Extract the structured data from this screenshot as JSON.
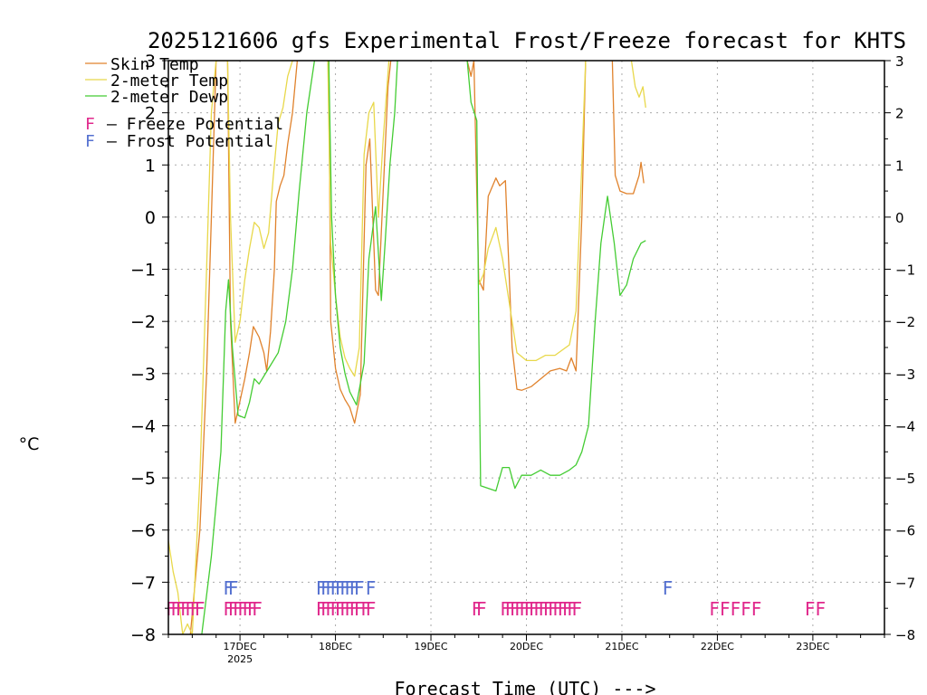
{
  "chart_data": {
    "type": "line",
    "title": "2025121606 gfs Experimental Frost/Freeze forecast for KHTS",
    "xlabel": "Forecast Time (UTC) --->",
    "ylabel": "°C",
    "ylim": [
      -8,
      3
    ],
    "y_ticks": [
      -8,
      -7,
      -6,
      -5,
      -4,
      -3,
      -2,
      -1,
      0,
      1,
      2,
      3
    ],
    "xlim": [
      -0.75,
      6.75
    ],
    "x_ticks": [
      {
        "x": 0,
        "label": "17DEC",
        "sublabel": "2025"
      },
      {
        "x": 1,
        "label": "18DEC",
        "sublabel": ""
      },
      {
        "x": 2,
        "label": "19DEC",
        "sublabel": ""
      },
      {
        "x": 3,
        "label": "20DEC",
        "sublabel": ""
      },
      {
        "x": 4,
        "label": "21DEC",
        "sublabel": ""
      },
      {
        "x": 5,
        "label": "22DEC",
        "sublabel": ""
      },
      {
        "x": 6,
        "label": "23DEC",
        "sublabel": ""
      }
    ],
    "grid": true,
    "legend_position": "top-left",
    "series": [
      {
        "name": "Skin Temp",
        "color": "#e0822c",
        "points": [
          [
            -0.52,
            -8
          ],
          [
            -0.42,
            -6
          ],
          [
            -0.35,
            -3
          ],
          [
            -0.3,
            0
          ],
          [
            -0.25,
            3
          ],
          [
            -0.13,
            3
          ],
          [
            -0.1,
            -2
          ],
          [
            -0.05,
            -3.95
          ],
          [
            0.05,
            -3.1
          ],
          [
            0.1,
            -2.6
          ],
          [
            0.14,
            -2.1
          ],
          [
            0.2,
            -2.3
          ],
          [
            0.25,
            -2.6
          ],
          [
            0.28,
            -2.95
          ],
          [
            0.32,
            -2.2
          ],
          [
            0.36,
            -1
          ],
          [
            0.38,
            0.3
          ],
          [
            0.42,
            0.6
          ],
          [
            0.46,
            0.8
          ],
          [
            0.5,
            1.4
          ],
          [
            0.55,
            2
          ],
          [
            0.6,
            3
          ]
        ],
        "gaps": [
          [
            [
              0.93,
              3
            ],
            [
              0.95,
              -2
            ],
            [
              1,
              -2.9
            ],
            [
              1.05,
              -3.3
            ],
            [
              1.1,
              -3.5
            ],
            [
              1.15,
              -3.65
            ],
            [
              1.2,
              -3.95
            ],
            [
              1.26,
              -3.4
            ],
            [
              1.32,
              1
            ],
            [
              1.36,
              1.5
            ],
            [
              1.42,
              -1.4
            ],
            [
              1.45,
              -1.5
            ],
            [
              1.5,
              0.5
            ],
            [
              1.55,
              2.5
            ],
            [
              1.58,
              3
            ]
          ],
          [
            [
              2.38,
              3
            ],
            [
              2.42,
              2.7
            ],
            [
              2.45,
              3
            ],
            [
              2.5,
              -1.2
            ],
            [
              2.55,
              -1.4
            ],
            [
              2.6,
              0.4
            ],
            [
              2.68,
              0.75
            ],
            [
              2.72,
              0.6
            ],
            [
              2.78,
              0.7
            ],
            [
              2.85,
              -2.5
            ],
            [
              2.9,
              -3.3
            ],
            [
              2.95,
              -3.32
            ],
            [
              3.05,
              -3.25
            ],
            [
              3.15,
              -3.1
            ],
            [
              3.25,
              -2.95
            ],
            [
              3.35,
              -2.9
            ],
            [
              3.42,
              -2.95
            ],
            [
              3.47,
              -2.7
            ],
            [
              3.52,
              -2.95
            ],
            [
              3.58,
              0
            ],
            [
              3.62,
              3
            ]
          ],
          [
            [
              3.9,
              3
            ],
            [
              3.93,
              0.8
            ],
            [
              3.98,
              0.5
            ],
            [
              4.05,
              0.45
            ],
            [
              4.12,
              0.45
            ],
            [
              4.18,
              0.8
            ],
            [
              4.2,
              1.05
            ],
            [
              4.23,
              0.65
            ]
          ]
        ]
      },
      {
        "name": "2-meter Temp",
        "color": "#e8d84a",
        "points": [
          [
            -0.75,
            -6.2
          ],
          [
            -0.7,
            -6.8
          ],
          [
            -0.65,
            -7.2
          ],
          [
            -0.6,
            -8
          ],
          [
            -0.55,
            -7.8
          ],
          [
            -0.5,
            -8
          ],
          [
            -0.42,
            -5
          ],
          [
            -0.35,
            -1
          ],
          [
            -0.3,
            2
          ],
          [
            -0.25,
            3
          ],
          [
            -0.13,
            3
          ],
          [
            -0.1,
            0
          ],
          [
            -0.05,
            -2.4
          ],
          [
            0,
            -2
          ],
          [
            0.05,
            -1.2
          ],
          [
            0.1,
            -0.6
          ],
          [
            0.15,
            -0.1
          ],
          [
            0.2,
            -0.2
          ],
          [
            0.25,
            -0.6
          ],
          [
            0.3,
            -0.3
          ],
          [
            0.35,
            0.8
          ],
          [
            0.4,
            1.8
          ],
          [
            0.45,
            2.1
          ],
          [
            0.5,
            2.7
          ],
          [
            0.55,
            3
          ]
        ],
        "gaps": [
          [
            [
              0.92,
              3
            ],
            [
              0.95,
              -0.5
            ],
            [
              1,
              -1.5
            ],
            [
              1.05,
              -2.3
            ],
            [
              1.1,
              -2.7
            ],
            [
              1.15,
              -2.9
            ],
            [
              1.2,
              -3.05
            ],
            [
              1.25,
              -2.5
            ],
            [
              1.3,
              1.2
            ],
            [
              1.35,
              2
            ],
            [
              1.4,
              2.2
            ],
            [
              1.45,
              0
            ],
            [
              1.5,
              1.5
            ],
            [
              1.56,
              3
            ]
          ],
          [
            [
              2.5,
              -1.3
            ],
            [
              2.55,
              -1.1
            ],
            [
              2.6,
              -0.6
            ],
            [
              2.68,
              -0.2
            ],
            [
              2.75,
              -0.8
            ],
            [
              2.85,
              -2
            ],
            [
              2.9,
              -2.6
            ],
            [
              3,
              -2.75
            ],
            [
              3.1,
              -2.75
            ],
            [
              3.2,
              -2.65
            ],
            [
              3.3,
              -2.65
            ],
            [
              3.45,
              -2.45
            ],
            [
              3.52,
              -1.8
            ],
            [
              3.58,
              1
            ],
            [
              3.62,
              3
            ]
          ],
          [
            [
              4.1,
              3
            ],
            [
              4.14,
              2.5
            ],
            [
              4.18,
              2.3
            ],
            [
              4.22,
              2.5
            ],
            [
              4.25,
              2.1
            ]
          ]
        ]
      },
      {
        "name": "2-meter Dewp",
        "color": "#44cc33",
        "points": [
          [
            -0.4,
            -8
          ],
          [
            -0.3,
            -6.5
          ],
          [
            -0.2,
            -4.5
          ],
          [
            -0.15,
            -1.8
          ],
          [
            -0.12,
            -1.2
          ],
          [
            -0.08,
            -2.5
          ],
          [
            -0.02,
            -3.8
          ],
          [
            0.05,
            -3.85
          ],
          [
            0.1,
            -3.55
          ],
          [
            0.15,
            -3.1
          ],
          [
            0.2,
            -3.2
          ],
          [
            0.3,
            -2.9
          ],
          [
            0.4,
            -2.6
          ],
          [
            0.48,
            -2
          ],
          [
            0.55,
            -1
          ],
          [
            0.62,
            0.5
          ],
          [
            0.7,
            2
          ],
          [
            0.78,
            3
          ]
        ],
        "gaps": [
          [
            [
              0.93,
              3
            ],
            [
              0.96,
              0
            ],
            [
              1,
              -1.5
            ],
            [
              1.05,
              -2.5
            ],
            [
              1.1,
              -3
            ],
            [
              1.15,
              -3.35
            ],
            [
              1.22,
              -3.6
            ],
            [
              1.3,
              -2.8
            ],
            [
              1.35,
              -0.8
            ],
            [
              1.42,
              0.2
            ],
            [
              1.48,
              -1.6
            ],
            [
              1.52,
              -0.5
            ],
            [
              1.57,
              1
            ],
            [
              1.62,
              2
            ],
            [
              1.65,
              3
            ]
          ],
          [
            [
              2.38,
              3
            ],
            [
              2.42,
              2.2
            ],
            [
              2.48,
              1.85
            ],
            [
              2.5,
              -2
            ],
            [
              2.52,
              -5.15
            ],
            [
              2.6,
              -5.2
            ],
            [
              2.68,
              -5.25
            ],
            [
              2.75,
              -4.8
            ],
            [
              2.82,
              -4.8
            ],
            [
              2.88,
              -5.2
            ],
            [
              2.95,
              -4.95
            ],
            [
              3.05,
              -4.95
            ],
            [
              3.15,
              -4.85
            ],
            [
              3.25,
              -4.95
            ],
            [
              3.35,
              -4.95
            ],
            [
              3.45,
              -4.85
            ],
            [
              3.52,
              -4.75
            ],
            [
              3.58,
              -4.5
            ],
            [
              3.65,
              -4
            ],
            [
              3.72,
              -2
            ],
            [
              3.78,
              -0.5
            ],
            [
              3.85,
              0.4
            ],
            [
              3.92,
              -0.5
            ],
            [
              3.98,
              -1.5
            ],
            [
              4.05,
              -1.3
            ],
            [
              4.12,
              -0.8
            ],
            [
              4.2,
              -0.5
            ],
            [
              4.25,
              -0.45
            ]
          ]
        ]
      }
    ],
    "markers": [
      {
        "label": "F",
        "type": "Freeze Potential",
        "color": "#e0288c",
        "y": -7.5,
        "x": [
          -0.72,
          -0.67,
          -0.62,
          -0.57,
          -0.52,
          -0.47,
          -0.42,
          -0.12,
          -0.07,
          -0.02,
          0.03,
          0.08,
          0.13,
          0.18,
          0.85,
          0.9,
          0.95,
          1,
          1.05,
          1.1,
          1.15,
          1.2,
          1.25,
          1.32,
          1.37,
          2.48,
          2.53,
          2.78,
          2.83,
          2.88,
          2.93,
          2.98,
          3.03,
          3.08,
          3.13,
          3.18,
          3.23,
          3.28,
          3.33,
          3.38,
          3.43,
          3.48,
          3.53,
          4.97,
          5.08,
          5.19,
          5.3,
          5.41,
          5.97,
          6.08
        ]
      },
      {
        "label": "F",
        "type": "Frost Potential",
        "color": "#5470d0",
        "y": -7.1,
        "x": [
          -0.12,
          -0.07,
          0.85,
          0.9,
          0.95,
          1,
          1.05,
          1.1,
          1.15,
          1.2,
          1.25,
          1.37,
          4.48
        ]
      }
    ],
    "legend": [
      {
        "label": "Skin Temp",
        "color": "#e0822c"
      },
      {
        "label": "2-meter Temp",
        "color": "#e8d84a"
      },
      {
        "label": "2-meter Dewp",
        "color": "#44cc33"
      }
    ],
    "potential_legend": [
      {
        "prefix": "F",
        "text": "– Freeze Potential",
        "color": "#e0288c"
      },
      {
        "prefix": "F",
        "text": "– Frost Potential",
        "color": "#5470d0"
      }
    ]
  }
}
